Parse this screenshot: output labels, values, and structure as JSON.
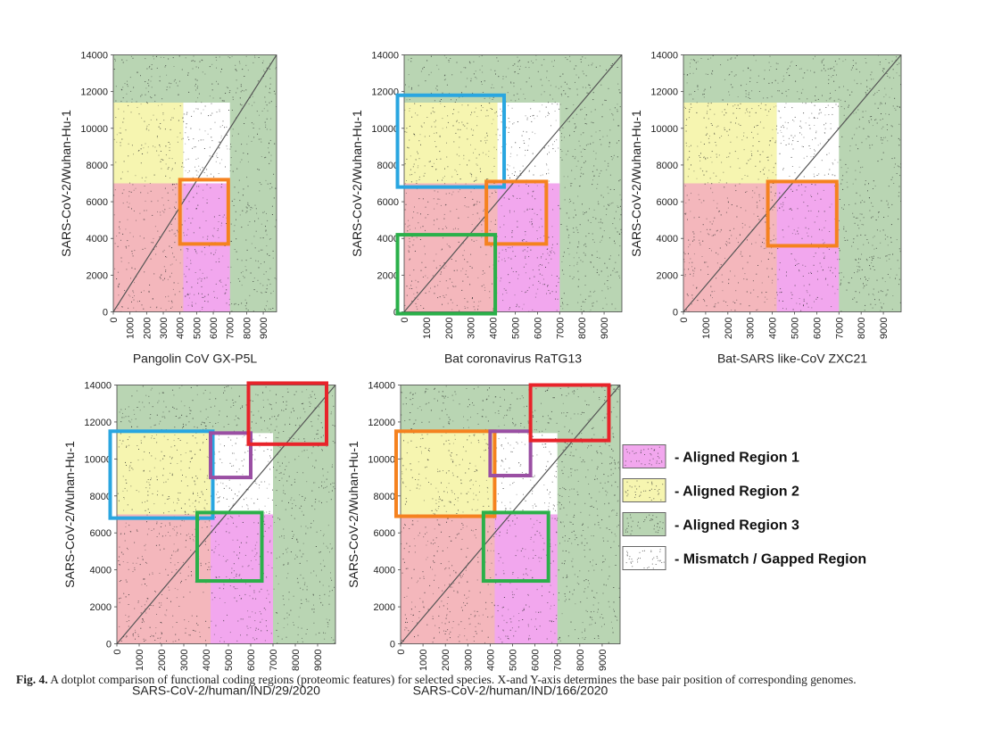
{
  "chart_data": {
    "type": "dotplot",
    "colors": {
      "aligned_region_1": "#f2a7ee",
      "aligned_region_2": "#f6f5b0",
      "aligned_region_3": "#b9d5b3",
      "aligned_red_zone": "#f4b7bc",
      "mismatch": "#ffffff",
      "box_orange": "#f5821f",
      "box_blue": "#29a6e0",
      "box_green": "#2bb04a",
      "box_red": "#e8232a",
      "box_purple": "#9a4fa3"
    },
    "legend": {
      "position": "right",
      "entries": [
        {
          "label": "- Aligned Region 1",
          "swatch": "aligned_region_1"
        },
        {
          "label": "- Aligned Region 2",
          "swatch": "aligned_region_2"
        },
        {
          "label": "- Aligned Region 3",
          "swatch": "aligned_region_3"
        },
        {
          "label": "- Mismatch / Gapped Region",
          "swatch": "mismatch"
        }
      ]
    },
    "panels": [
      {
        "xlabel": "Pangolin CoV GX-P5L",
        "ylabel": "SARS-CoV-2/Wuhan-Hu-1",
        "xlim": [
          0,
          9800
        ],
        "ylim": [
          0,
          14000
        ],
        "xticks": [
          0,
          1000,
          2000,
          3000,
          4000,
          5000,
          6000,
          7000,
          8000,
          9000
        ],
        "yticks": [
          0,
          2000,
          4000,
          6000,
          8000,
          10000,
          12000,
          14000
        ],
        "regions": [
          {
            "type": "aligned_region_3",
            "x": [
              0,
              9800
            ],
            "y": [
              0,
              14000
            ]
          },
          {
            "type": "aligned_red_zone",
            "x": [
              0,
              4200
            ],
            "y": [
              0,
              7000
            ]
          },
          {
            "type": "aligned_region_1",
            "x": [
              4200,
              7000
            ],
            "y": [
              0,
              7000
            ]
          },
          {
            "type": "aligned_region_2",
            "x": [
              0,
              4200
            ],
            "y": [
              7000,
              11400
            ]
          },
          {
            "type": "mismatch",
            "x": [
              4200,
              7000
            ],
            "y": [
              7000,
              11400
            ]
          }
        ],
        "boxes": [
          {
            "color": "box_orange",
            "x": [
              4000,
              6900
            ],
            "y": [
              3700,
              7200
            ]
          }
        ]
      },
      {
        "xlabel": "Bat coronavirus RaTG13",
        "ylabel": "SARS-CoV-2/Wuhan-Hu-1",
        "xlim": [
          0,
          9800
        ],
        "ylim": [
          0,
          14000
        ],
        "xticks": [
          0,
          1000,
          2000,
          3000,
          4000,
          5000,
          6000,
          7000,
          8000,
          9000
        ],
        "yticks": [
          0,
          2000,
          4000,
          6000,
          8000,
          10000,
          12000,
          14000
        ],
        "regions": [
          {
            "type": "aligned_region_3",
            "x": [
              0,
              9800
            ],
            "y": [
              0,
              14000
            ]
          },
          {
            "type": "aligned_red_zone",
            "x": [
              0,
              4200
            ],
            "y": [
              0,
              7000
            ]
          },
          {
            "type": "aligned_region_1",
            "x": [
              4200,
              7000
            ],
            "y": [
              0,
              7000
            ]
          },
          {
            "type": "aligned_region_2",
            "x": [
              0,
              4200
            ],
            "y": [
              7000,
              11400
            ]
          },
          {
            "type": "mismatch",
            "x": [
              4200,
              7000
            ],
            "y": [
              7000,
              11400
            ]
          }
        ],
        "boxes": [
          {
            "color": "box_blue",
            "x": [
              -300,
              4500
            ],
            "y": [
              6800,
              11800
            ]
          },
          {
            "color": "box_orange",
            "x": [
              3700,
              6400
            ],
            "y": [
              3700,
              7100
            ]
          },
          {
            "color": "box_green",
            "x": [
              -300,
              4100
            ],
            "y": [
              -100,
              4200
            ]
          }
        ]
      },
      {
        "xlabel": "Bat-SARS like-CoV ZXC21",
        "ylabel": "SARS-CoV-2/Wuhan-Hu-1",
        "xlim": [
          0,
          9800
        ],
        "ylim": [
          0,
          14000
        ],
        "xticks": [
          0,
          1000,
          2000,
          3000,
          4000,
          5000,
          6000,
          7000,
          8000,
          9000
        ],
        "yticks": [
          0,
          2000,
          4000,
          6000,
          8000,
          10000,
          12000,
          14000
        ],
        "regions": [
          {
            "type": "aligned_region_3",
            "x": [
              0,
              9800
            ],
            "y": [
              0,
              14000
            ]
          },
          {
            "type": "aligned_red_zone",
            "x": [
              0,
              4200
            ],
            "y": [
              0,
              7000
            ]
          },
          {
            "type": "aligned_region_1",
            "x": [
              4200,
              7000
            ],
            "y": [
              0,
              7000
            ]
          },
          {
            "type": "aligned_region_2",
            "x": [
              0,
              4200
            ],
            "y": [
              7000,
              11400
            ]
          },
          {
            "type": "mismatch",
            "x": [
              4200,
              7000
            ],
            "y": [
              7000,
              11400
            ]
          }
        ],
        "boxes": [
          {
            "color": "box_orange",
            "x": [
              3800,
              6900
            ],
            "y": [
              3600,
              7100
            ]
          }
        ]
      },
      {
        "xlabel": "SARS-CoV-2/human/IND/29/2020",
        "ylabel": "SARS-CoV-2/Wuhan-Hu-1",
        "xlim": [
          0,
          9800
        ],
        "ylim": [
          0,
          14000
        ],
        "xticks": [
          0,
          1000,
          2000,
          3000,
          4000,
          5000,
          6000,
          7000,
          8000,
          9000
        ],
        "yticks": [
          0,
          2000,
          4000,
          6000,
          8000,
          10000,
          12000,
          14000
        ],
        "regions": [
          {
            "type": "aligned_region_3",
            "x": [
              0,
              9800
            ],
            "y": [
              0,
              14000
            ]
          },
          {
            "type": "aligned_red_zone",
            "x": [
              0,
              4200
            ],
            "y": [
              0,
              7000
            ]
          },
          {
            "type": "aligned_region_1",
            "x": [
              4200,
              7000
            ],
            "y": [
              0,
              7000
            ]
          },
          {
            "type": "aligned_region_2",
            "x": [
              0,
              4200
            ],
            "y": [
              7000,
              11400
            ]
          },
          {
            "type": "mismatch",
            "x": [
              4200,
              7000
            ],
            "y": [
              7000,
              11400
            ]
          }
        ],
        "boxes": [
          {
            "color": "box_blue",
            "x": [
              -300,
              4300
            ],
            "y": [
              6800,
              11500
            ]
          },
          {
            "color": "box_green",
            "x": [
              3600,
              6500
            ],
            "y": [
              3400,
              7100
            ]
          },
          {
            "color": "box_purple",
            "x": [
              4200,
              6000
            ],
            "y": [
              9000,
              11400
            ]
          },
          {
            "color": "box_red",
            "x": [
              5900,
              9400
            ],
            "y": [
              10800,
              14100
            ]
          }
        ]
      },
      {
        "xlabel": "SARS-CoV-2/human/IND/166/2020",
        "ylabel": "SARS-CoV-2/Wuhan-Hu-1",
        "xlim": [
          0,
          9800
        ],
        "ylim": [
          0,
          14000
        ],
        "xticks": [
          0,
          1000,
          2000,
          3000,
          4000,
          5000,
          6000,
          7000,
          8000,
          9000
        ],
        "yticks": [
          0,
          2000,
          4000,
          6000,
          8000,
          10000,
          12000,
          14000
        ],
        "regions": [
          {
            "type": "aligned_region_3",
            "x": [
              0,
              9800
            ],
            "y": [
              0,
              14000
            ]
          },
          {
            "type": "aligned_red_zone",
            "x": [
              0,
              4200
            ],
            "y": [
              0,
              7000
            ]
          },
          {
            "type": "aligned_region_1",
            "x": [
              4200,
              7000
            ],
            "y": [
              0,
              7000
            ]
          },
          {
            "type": "aligned_region_2",
            "x": [
              0,
              4200
            ],
            "y": [
              7000,
              11400
            ]
          },
          {
            "type": "mismatch",
            "x": [
              4200,
              7000
            ],
            "y": [
              7000,
              11400
            ]
          }
        ],
        "boxes": [
          {
            "color": "box_orange",
            "x": [
              -200,
              4200
            ],
            "y": [
              6900,
              11500
            ]
          },
          {
            "color": "box_green",
            "x": [
              3700,
              6600
            ],
            "y": [
              3400,
              7100
            ]
          },
          {
            "color": "box_purple",
            "x": [
              4000,
              5800
            ],
            "y": [
              9100,
              11500
            ]
          },
          {
            "color": "box_red",
            "x": [
              5800,
              9300
            ],
            "y": [
              11000,
              14000
            ]
          }
        ]
      }
    ]
  },
  "caption": {
    "label": "Fig. 4.",
    "text": "A dotplot comparison of functional coding regions (proteomic features) for selected species. X-and Y-axis determines the base pair position of corresponding genomes."
  }
}
